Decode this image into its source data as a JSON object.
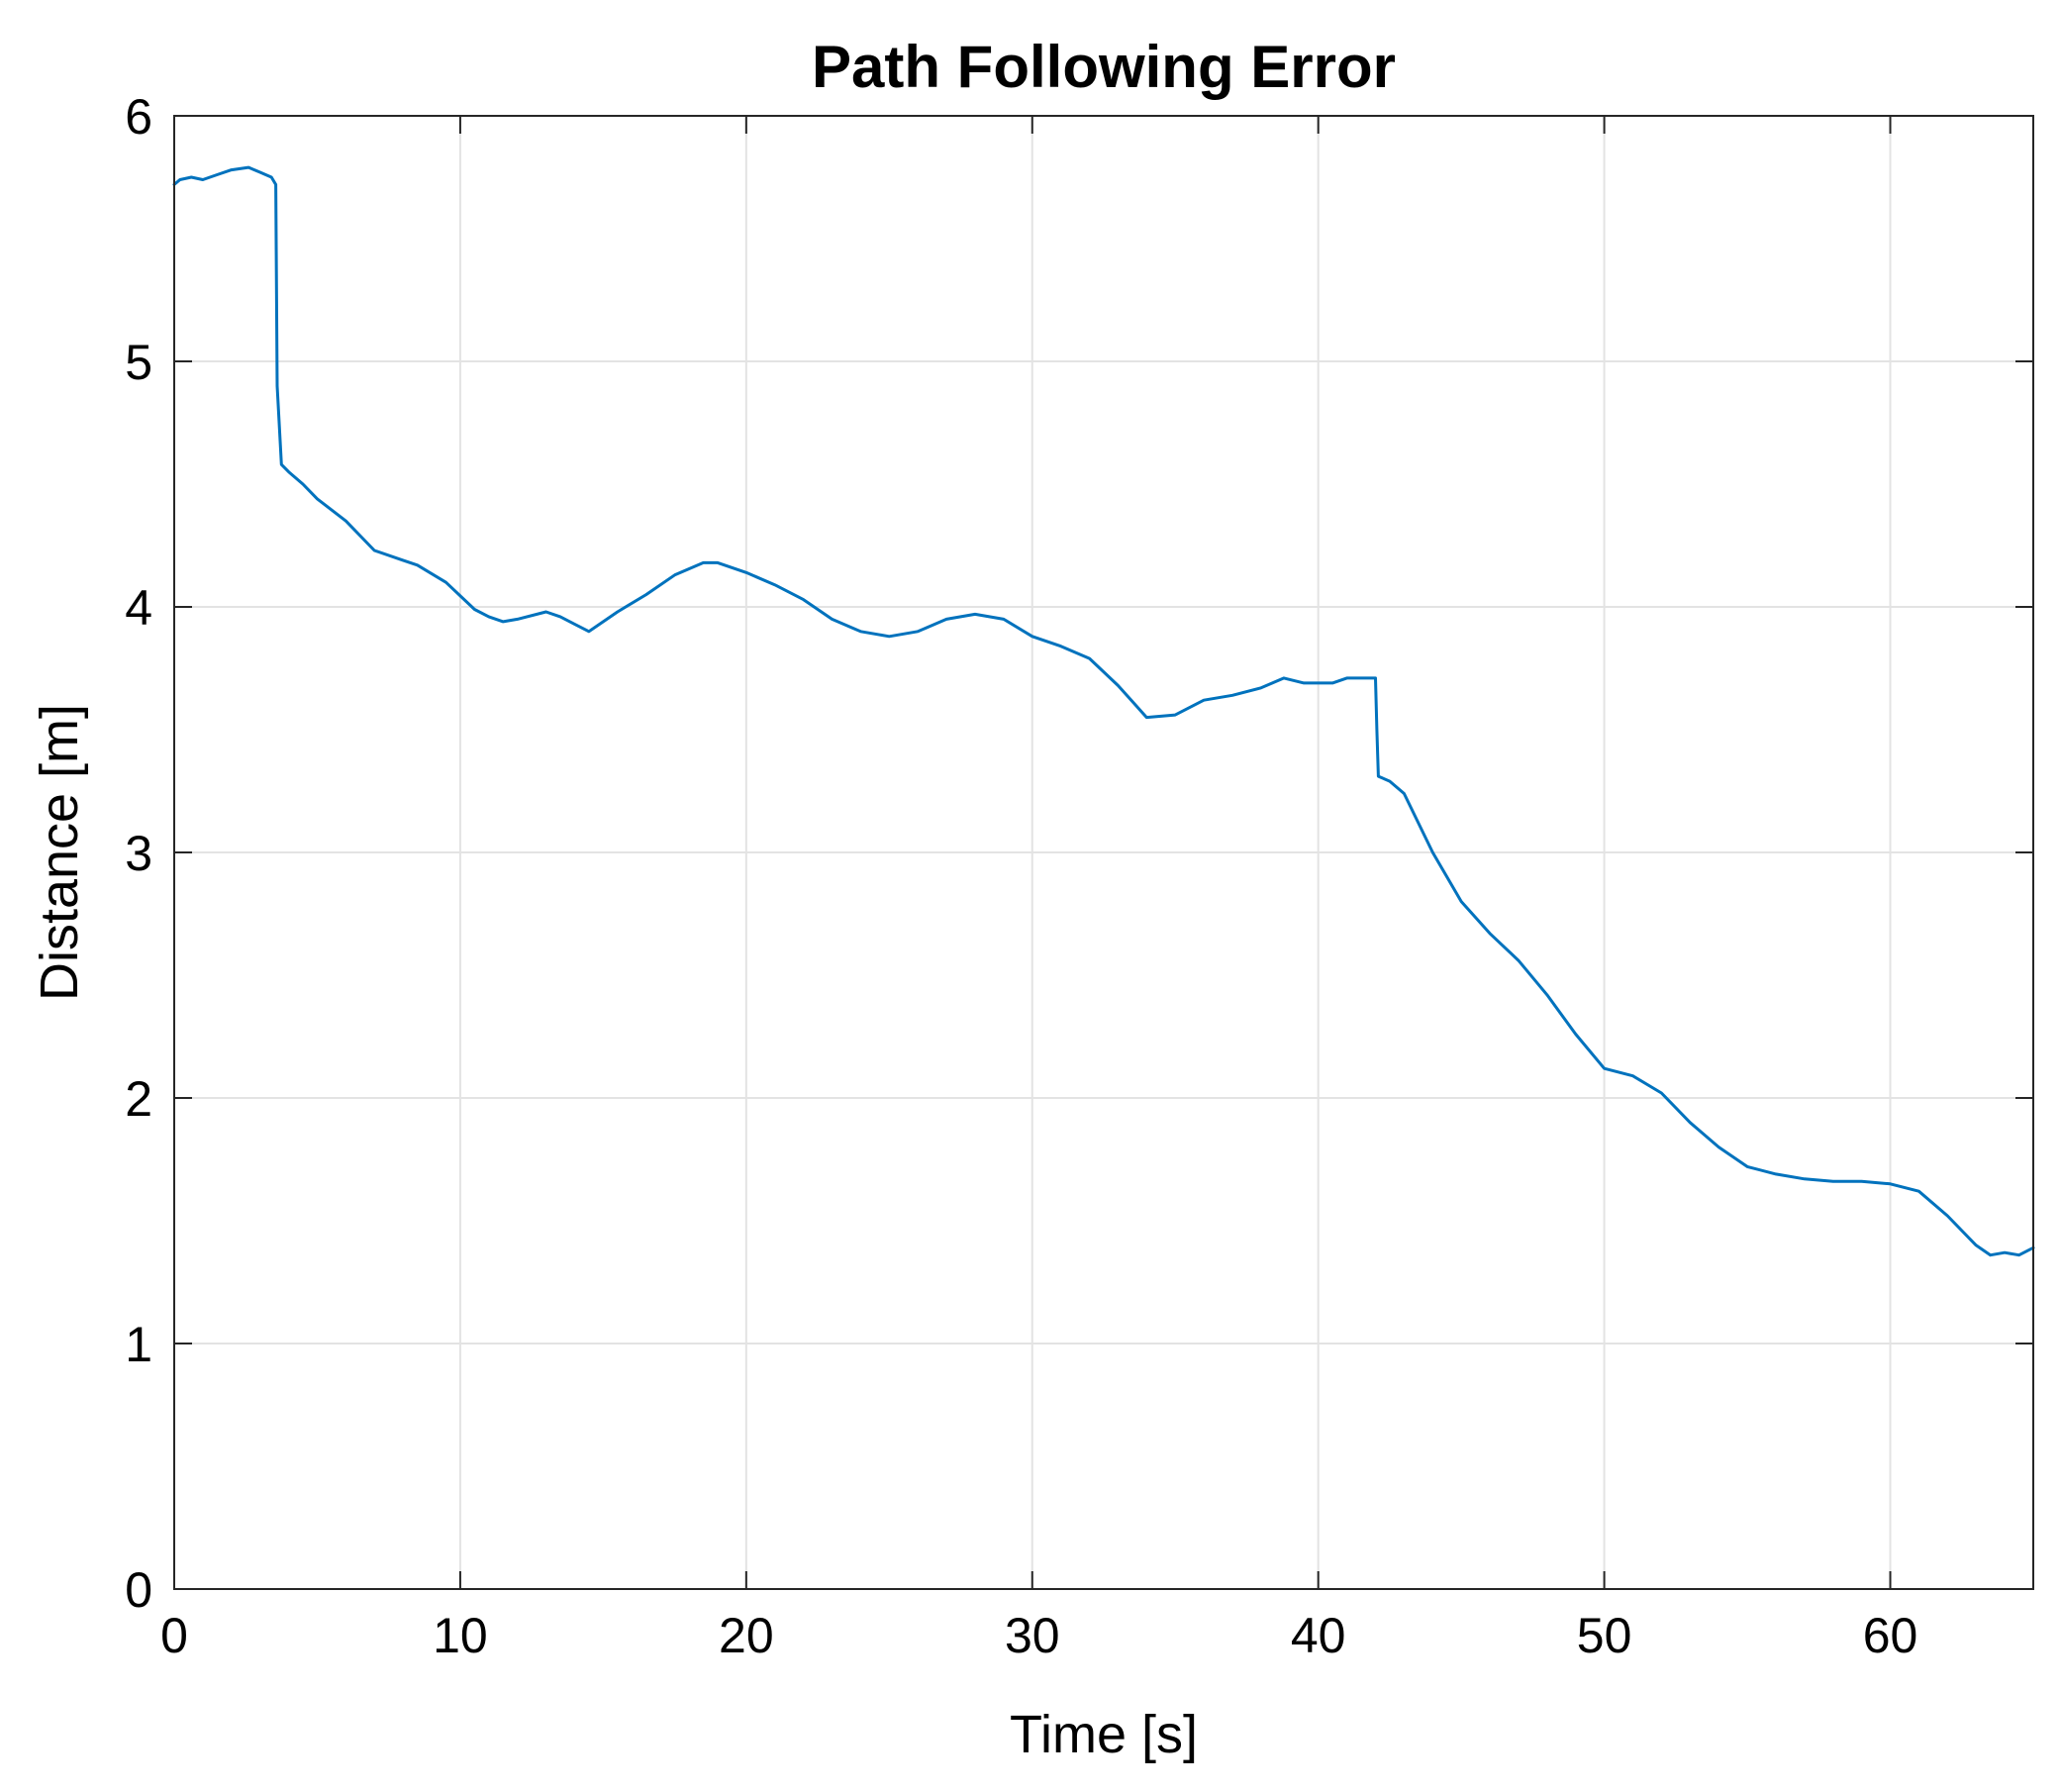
{
  "chart_data": {
    "type": "line",
    "title": "Path Following Error",
    "xlabel": "Time [s]",
    "ylabel": "Distance [m]",
    "xlim": [
      0,
      65
    ],
    "ylim": [
      0,
      6
    ],
    "xticks": [
      0,
      10,
      20,
      30,
      40,
      50,
      60
    ],
    "yticks": [
      0,
      1,
      2,
      3,
      4,
      5,
      6
    ],
    "xtick_labels": [
      "0",
      "10",
      "20",
      "30",
      "40",
      "50",
      "60"
    ],
    "ytick_labels": [
      "0",
      "1",
      "2",
      "3",
      "4",
      "5",
      "6"
    ],
    "grid": true,
    "line_color": "#0072BD",
    "series": [
      {
        "x": [
          0,
          0.2,
          0.6,
          1.0,
          1.5,
          2.0,
          2.6,
          3.0,
          3.4,
          3.55,
          3.6,
          3.75,
          4.0,
          4.5,
          5.0,
          6.0,
          7.0,
          8.0,
          8.5,
          9.5,
          10.5,
          11.0,
          11.5,
          12.0,
          13.0,
          13.5,
          14.0,
          14.5,
          15.5,
          16.5,
          17.5,
          18.5,
          19.0,
          20.0,
          21.0,
          22.0,
          23.0,
          24.0,
          25.0,
          26.0,
          27.0,
          28.0,
          29.0,
          30.0,
          31.0,
          32.0,
          33.0,
          34.0,
          35.0,
          36.0,
          37.0,
          38.0,
          38.8,
          39.5,
          40.5,
          41.0,
          41.8,
          42.0,
          42.05,
          42.1,
          42.5,
          43.0,
          44.0,
          45.0,
          46.0,
          47.0,
          48.0,
          49.0,
          50.0,
          51.0,
          52.0,
          53.0,
          54.0,
          55.0,
          56.0,
          57.0,
          58.0,
          59.0,
          60.0,
          61.0,
          62.0,
          63.0,
          63.5,
          64.0,
          64.5,
          65.0
        ],
        "y": [
          5.72,
          5.74,
          5.75,
          5.74,
          5.76,
          5.78,
          5.79,
          5.77,
          5.75,
          5.72,
          4.9,
          4.58,
          4.55,
          4.5,
          4.44,
          4.35,
          4.23,
          4.19,
          4.17,
          4.1,
          3.99,
          3.96,
          3.94,
          3.95,
          3.98,
          3.96,
          3.93,
          3.9,
          3.98,
          4.05,
          4.13,
          4.18,
          4.18,
          4.14,
          4.09,
          4.03,
          3.95,
          3.9,
          3.88,
          3.9,
          3.95,
          3.97,
          3.95,
          3.88,
          3.84,
          3.79,
          3.68,
          3.55,
          3.56,
          3.62,
          3.64,
          3.67,
          3.71,
          3.69,
          3.69,
          3.71,
          3.71,
          3.71,
          3.5,
          3.31,
          3.29,
          3.24,
          3.0,
          2.8,
          2.67,
          2.56,
          2.42,
          2.26,
          2.12,
          2.09,
          2.02,
          1.9,
          1.8,
          1.72,
          1.69,
          1.67,
          1.66,
          1.66,
          1.65,
          1.62,
          1.52,
          1.4,
          1.36,
          1.37,
          1.36,
          1.39
        ]
      }
    ]
  }
}
